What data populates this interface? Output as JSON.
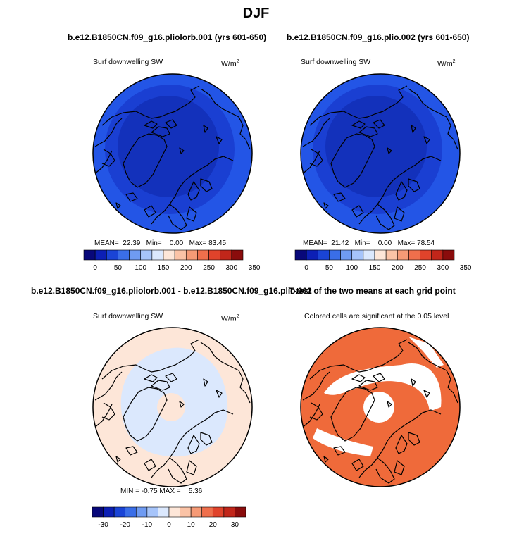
{
  "page": {
    "title": "DJF"
  },
  "panels": [
    {
      "title": "b.e12.B1850CN.f09_g16.pliolorb.001 (yrs 601-650)",
      "left_label": "Surf downwelling SW",
      "units": "W/m",
      "units_sup": "2",
      "stats": {
        "mean_label": "MEAN=",
        "mean": "22.39",
        "min_label": "Min=",
        "min": "0.00",
        "max_label": "Max=",
        "max": "83.45"
      },
      "colorbar_ticks": [
        "0",
        "50",
        "100",
        "150",
        "200",
        "250",
        "300",
        "350"
      ],
      "field": "abs"
    },
    {
      "title": "b.e12.B1850CN.f09_g16.plio.002 (yrs 601-650)",
      "left_label": "Surf downwelling SW",
      "units": "W/m",
      "units_sup": "2",
      "stats": {
        "mean_label": "MEAN=",
        "mean": "21.42",
        "min_label": "Min=",
        "min": "0.00",
        "max_label": "Max=",
        "max": "78.54"
      },
      "colorbar_ticks": [
        "0",
        "50",
        "100",
        "150",
        "200",
        "250",
        "300",
        "350"
      ],
      "field": "abs"
    },
    {
      "title": "b.e12.B1850CN.f09_g16.pliolorb.001 - b.e12.B1850CN.f09_g16.plio.002",
      "left_label": "Surf downwelling SW",
      "units": "W/m",
      "units_sup": "2",
      "stats": {
        "min_label": "MIN =",
        "min": "-0.75",
        "max_label": "MAX =",
        "max": "5.36"
      },
      "colorbar_ticks": [
        "-30",
        "-20",
        "-10",
        "0",
        "10",
        "20",
        "30"
      ],
      "field": "diff"
    },
    {
      "title": "T-test of the two means at each grid point",
      "left_label": "Colored cells are significant at the 0.05 level",
      "field": "ttest"
    }
  ],
  "colors": {
    "abs_scale": [
      "#08087a",
      "#0c1fb5",
      "#1a44d6",
      "#3a6ee8",
      "#6f9bf2",
      "#a6c4fa",
      "#dbe8fd",
      "#fde6d8",
      "#fbc3a6",
      "#f69a76",
      "#ef6f4c",
      "#e0432b",
      "#c1261a",
      "#8a0c0c"
    ],
    "diff_scale": [
      "#08087a",
      "#0c1fb5",
      "#1a44d6",
      "#3a6ee8",
      "#6f9bf2",
      "#a6c4fa",
      "#dbe8fd",
      "#fde6d8",
      "#fbc3a6",
      "#f69a76",
      "#ef6f4c",
      "#e0432b",
      "#c1261a",
      "#8a0c0c"
    ],
    "abs_outer": "#2355e6",
    "abs_mid": "#1a3fd2",
    "abs_inner": "#1331bb",
    "diff_bg": "#fde6d8",
    "diff_neg": "#dbe8fd",
    "ttest_fill": "#ef6a3a",
    "coast": "#000000"
  },
  "chart_data": [
    {
      "type": "heatmap",
      "title": "b.e12.B1850CN.f09_g16.pliolorb.001 (yrs 601-650)",
      "variable": "Surf downwelling SW",
      "units": "W/m2",
      "mean": 22.39,
      "min": 0.0,
      "max": 83.45,
      "colorbar_range": [
        0,
        350
      ],
      "colorbar_ticks": [
        0,
        50,
        100,
        150,
        200,
        250,
        300,
        350
      ]
    },
    {
      "type": "heatmap",
      "title": "b.e12.B1850CN.f09_g16.plio.002 (yrs 601-650)",
      "variable": "Surf downwelling SW",
      "units": "W/m2",
      "mean": 21.42,
      "min": 0.0,
      "max": 78.54,
      "colorbar_range": [
        0,
        350
      ],
      "colorbar_ticks": [
        0,
        50,
        100,
        150,
        200,
        250,
        300,
        350
      ]
    },
    {
      "type": "heatmap",
      "title": "b.e12.B1850CN.f09_g16.pliolorb.001 - b.e12.B1850CN.f09_g16.plio.002",
      "variable": "Surf downwelling SW",
      "units": "W/m2",
      "min": -0.75,
      "max": 5.36,
      "colorbar_range": [
        -35,
        35
      ],
      "colorbar_ticks": [
        -30,
        -20,
        -10,
        0,
        10,
        20,
        30
      ]
    },
    {
      "type": "heatmap",
      "title": "T-test of the two means at each grid point",
      "note": "Colored cells are significant at the 0.05 level"
    }
  ]
}
